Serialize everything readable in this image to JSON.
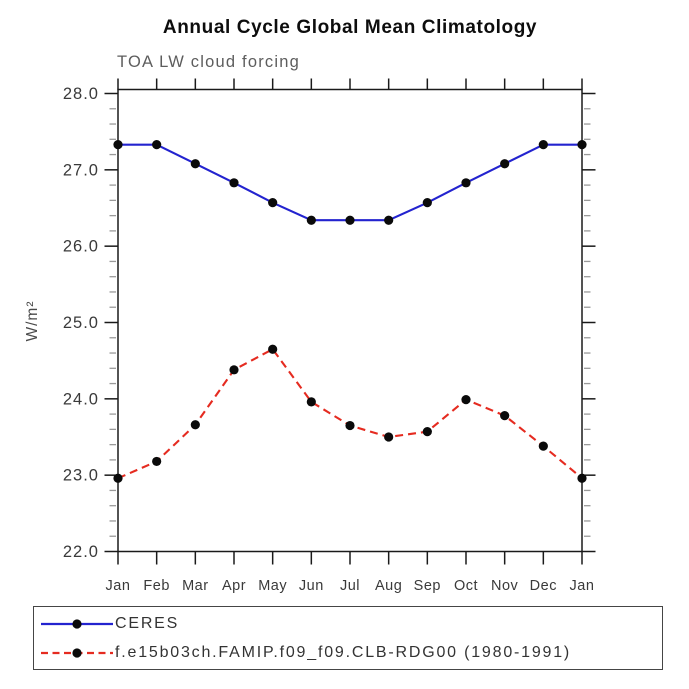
{
  "header": {
    "title": "Annual Cycle Global Mean Climatology",
    "subtitle": "TOA LW cloud forcing"
  },
  "chart_data": {
    "type": "line",
    "title": "Annual Cycle Global Mean Climatology",
    "subtitle": "TOA LW cloud forcing",
    "ylabel": "W/m²",
    "xlabel": "",
    "x_categories": [
      "Jan",
      "Feb",
      "Mar",
      "Apr",
      "May",
      "Jun",
      "Jul",
      "Aug",
      "Sep",
      "Oct",
      "Nov",
      "Dec",
      "Jan"
    ],
    "ylim": [
      22.0,
      28.0
    ],
    "ytick_interval": 1.0,
    "yminor_interval": 0.2,
    "ytick_labels": [
      "22.0",
      "23.0",
      "24.0",
      "25.0",
      "26.0",
      "27.0",
      "28.0"
    ],
    "grid": false,
    "legend_position": "below-left",
    "series": [
      {
        "name": "CERES",
        "line_style": "solid",
        "color": "#2323cf",
        "marker": "circle",
        "marker_color": "#0a0a0a",
        "values": [
          27.33,
          27.33,
          27.08,
          26.83,
          26.57,
          26.34,
          26.34,
          26.34,
          26.57,
          26.83,
          27.08,
          27.33,
          27.33
        ]
      },
      {
        "name": "f.e15b03ch.FAMIP.f09_f09.CLB-RDG00 (1980-1991)",
        "line_style": "dashed",
        "color": "#e52b20",
        "marker": "circle",
        "marker_color": "#0a0a0a",
        "values": [
          22.96,
          23.18,
          23.66,
          24.38,
          24.65,
          23.96,
          23.65,
          23.5,
          23.57,
          23.99,
          23.78,
          23.38,
          22.96
        ]
      }
    ],
    "axis_color": "#1a1a1a",
    "minor_tick_color": "#9a9a9a"
  }
}
